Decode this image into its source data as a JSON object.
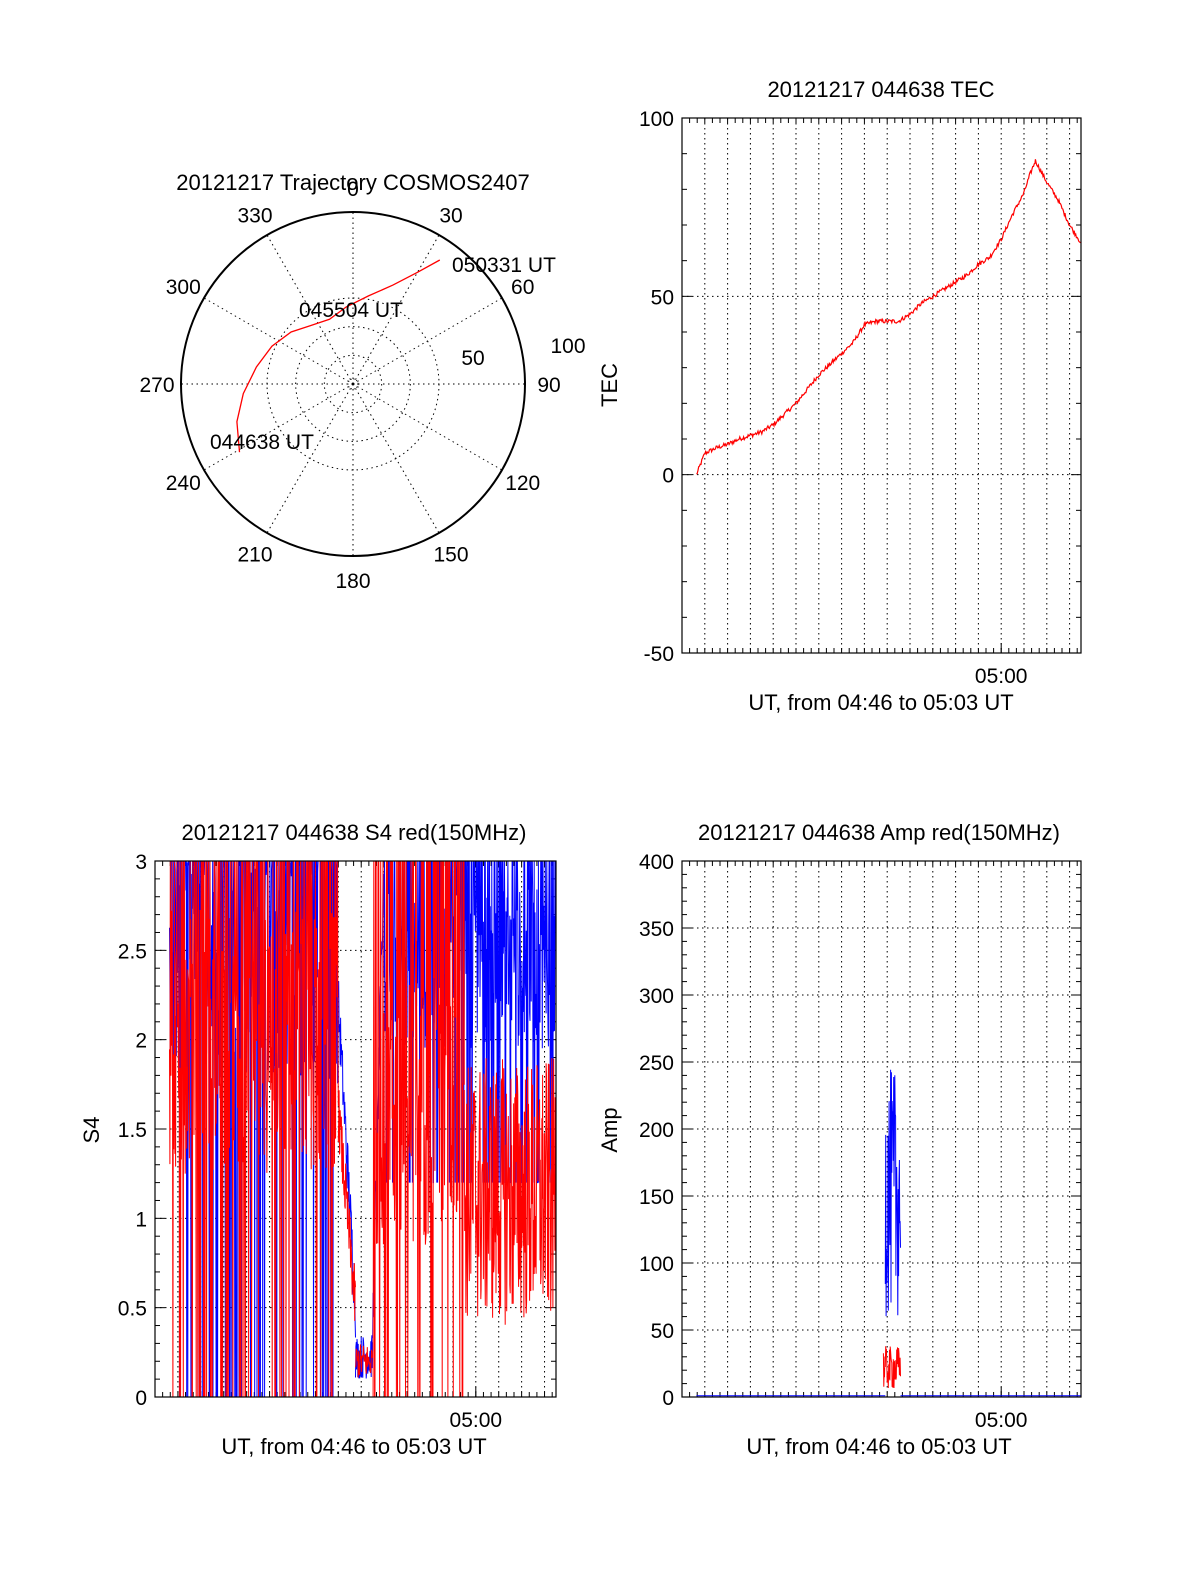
{
  "colors": {
    "red": "#ff0000",
    "blue": "#0000ff",
    "axis": "#000000"
  },
  "chart_data": [
    {
      "type": "polar",
      "title": "20121217 Trajectory COSMOS2407",
      "azimuth_labels": [
        "0",
        "30",
        "60",
        "90",
        "120",
        "150",
        "180",
        "210",
        "240",
        "270",
        "300",
        "330"
      ],
      "azimuth_ticks": [
        0,
        30,
        60,
        90,
        120,
        150,
        180,
        210,
        240,
        270,
        300,
        330
      ],
      "radial_labels": [
        "50",
        "100"
      ],
      "grid": true,
      "series": [
        {
          "color": "#ff0000",
          "points": [
            [
              239,
              77
            ],
            [
              252,
              71
            ],
            [
              265,
              64
            ],
            [
              280,
              57
            ],
            [
              295,
              52
            ],
            [
              310,
              47
            ],
            [
              324,
              42
            ],
            [
              340,
              40
            ],
            [
              355,
              45
            ],
            [
              10,
              52
            ],
            [
              22,
              62
            ],
            [
              30,
              75
            ],
            [
              35,
              88
            ]
          ]
        }
      ],
      "annotations": [
        {
          "text": "044638 UT",
          "az": 239,
          "r": 77
        },
        {
          "text": "045504 UT",
          "az": 337,
          "r": 36
        },
        {
          "text": "050331 UT",
          "az": 36,
          "r": 88
        }
      ]
    },
    {
      "type": "line",
      "title": "20121217 044638 TEC",
      "xlabel": "UT, from 04:46 to 05:03 UT",
      "ylabel": "TEC",
      "xlim": [
        "04:46:00",
        "05:03:30"
      ],
      "ylim": [
        -50,
        100
      ],
      "yticks": [
        -50,
        0,
        50,
        100
      ],
      "xtick_labels": [
        {
          "t": "05:00:00",
          "label": "05:00"
        }
      ],
      "grid": true,
      "series": [
        {
          "color": "#ff0000",
          "x": [
            "04:46:38",
            "04:47:00",
            "04:47:30",
            "04:48:00",
            "04:48:30",
            "04:49:00",
            "04:49:30",
            "04:50:00",
            "04:50:30",
            "04:51:00",
            "04:51:30",
            "04:52:00",
            "04:52:30",
            "04:53:00",
            "04:53:30",
            "04:54:00",
            "04:54:30",
            "04:55:00",
            "04:55:30",
            "04:56:00",
            "04:56:30",
            "04:57:00",
            "04:57:30",
            "04:58:00",
            "04:58:30",
            "04:59:00",
            "04:59:30",
            "05:00:00",
            "05:00:30",
            "05:01:00",
            "05:01:15",
            "05:01:30",
            "05:02:00",
            "05:02:30",
            "05:03:00",
            "05:03:30"
          ],
          "y": [
            0,
            6,
            7.5,
            8.5,
            10,
            11,
            12,
            14,
            17,
            20,
            24,
            28,
            31,
            34,
            37,
            42,
            43,
            43,
            43,
            45,
            48,
            50,
            52,
            54,
            56,
            59,
            61,
            66,
            73,
            79,
            84,
            88,
            82,
            77,
            70,
            65
          ]
        }
      ]
    },
    {
      "type": "line",
      "title": "20121217 044638 S4 red(150MHz)",
      "xlabel": "UT, from 04:46 to 05:03 UT",
      "ylabel": "S4",
      "xlim": [
        "04:46:00",
        "05:03:30"
      ],
      "ylim": [
        0,
        3
      ],
      "yticks": [
        0,
        0.5,
        1,
        1.5,
        2,
        2.5,
        3
      ],
      "ytick_labels": [
        "0",
        "0.5",
        "1",
        "1.5",
        "2",
        "2.5",
        "3"
      ],
      "xtick_labels": [
        {
          "t": "05:00:00",
          "label": "05:00"
        }
      ],
      "grid": true,
      "series": [
        {
          "color": "#0000ff",
          "segments": [
            {
              "from": "04:46:38",
              "to": "04:54:00",
              "mode": "spiky",
              "min": 0,
              "max": 3,
              "base": 2.5
            },
            {
              "from": "04:54:00",
              "to": "04:54:45",
              "mode": "decline",
              "start": 2.2,
              "end": 0.5
            },
            {
              "from": "04:54:45",
              "to": "04:55:30",
              "mode": "noisy",
              "min": 0.1,
              "max": 0.35
            },
            {
              "from": "04:55:30",
              "to": "04:56:00",
              "mode": "rise",
              "start": 0.4,
              "end": 3
            },
            {
              "from": "04:56:00",
              "to": "05:03:30",
              "mode": "spiky",
              "min": 1.2,
              "max": 3,
              "base": 2.4
            }
          ]
        },
        {
          "color": "#ff0000",
          "segments": [
            {
              "from": "04:46:38",
              "to": "04:54:00",
              "mode": "spiky",
              "min": 0,
              "max": 3,
              "base": 2.0
            },
            {
              "from": "04:54:00",
              "to": "04:54:45",
              "mode": "decline",
              "start": 1.6,
              "end": 0.5
            },
            {
              "from": "04:54:45",
              "to": "04:55:30",
              "mode": "noisy",
              "min": 0.1,
              "max": 0.3
            },
            {
              "from": "04:55:30",
              "to": "04:59:30",
              "mode": "spiky",
              "min": 0,
              "max": 3,
              "base": 1.6
            },
            {
              "from": "04:59:30",
              "to": "05:03:30",
              "mode": "noisy",
              "min": 0.4,
              "max": 1.9
            }
          ]
        }
      ]
    },
    {
      "type": "line",
      "title": "20121217 044638 Amp red(150MHz)",
      "xlabel": "UT, from 04:46 to 05:03 UT",
      "ylabel": "Amp",
      "xlim": [
        "04:46:00",
        "05:03:30"
      ],
      "ylim": [
        0,
        400
      ],
      "yticks": [
        0,
        50,
        100,
        150,
        200,
        250,
        300,
        350,
        400
      ],
      "xtick_labels": [
        {
          "t": "05:00:00",
          "label": "05:00"
        }
      ],
      "grid": true,
      "series": [
        {
          "color": "#0000ff",
          "segments": [
            {
              "from": "04:46:38",
              "to": "04:54:55",
              "mode": "flat",
              "value": 1
            },
            {
              "from": "04:54:55",
              "to": "04:55:35",
              "mode": "noisy",
              "min": 60,
              "max": 245
            },
            {
              "from": "04:55:35",
              "to": "05:03:30",
              "mode": "flat",
              "value": 1
            }
          ]
        },
        {
          "color": "#ff0000",
          "segments": [
            {
              "from": "04:54:50",
              "to": "04:55:35",
              "mode": "noisy",
              "min": 5,
              "max": 38
            }
          ]
        }
      ]
    }
  ]
}
